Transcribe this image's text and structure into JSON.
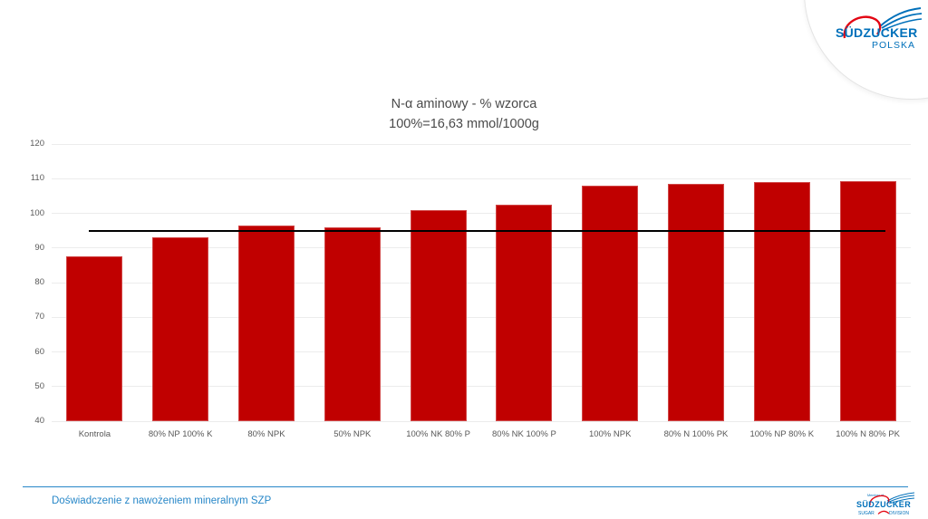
{
  "slide": {
    "footer_text": "Doświadczenie z nawożeniem mineralnym SZP"
  },
  "logo_top": {
    "brand": "SÜDZUCKER",
    "country": "POLSKA"
  },
  "logo_bottom": {
    "member": "Member of",
    "brand": "SÜDZUCKER",
    "division_left": "SUGAR",
    "division_right": "DIVISION"
  },
  "chart_data": {
    "type": "bar",
    "title": "N-α aminowy - % wzorca",
    "subtitle": "100%=16,63 mmol/1000g",
    "categories": [
      "Kontrola",
      "80% NP 100% K",
      "80% NPK",
      "50% NPK",
      "100% NK 80% P",
      "80% NK 100% P",
      "100% NPK",
      "80% N 100% PK",
      "100% NP 80% K",
      "100% N 80% PK"
    ],
    "values": [
      87.5,
      93,
      96.5,
      96,
      101,
      102.5,
      108,
      108.5,
      109,
      109.2
    ],
    "reference_line": 95,
    "ylim": [
      40,
      120
    ],
    "yticks": [
      40,
      50,
      60,
      70,
      80,
      90,
      100,
      110,
      120
    ],
    "grid": true,
    "legend_position": "none",
    "bar_color": "#C00000"
  },
  "colors": {
    "bar": "#C00000",
    "reference_line": "#000000",
    "grid": "#ECECEC",
    "axis_text": "#595959",
    "title_text": "#4a4a4a",
    "footer_blue": "#2787C8",
    "logo_blue": "#0070BA",
    "logo_red": "#E30613"
  }
}
